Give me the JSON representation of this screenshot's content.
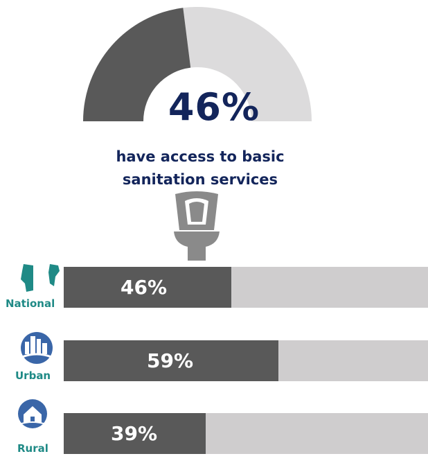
{
  "colors": {
    "filled": "#595959",
    "empty_gauge": "#dcdbdc",
    "empty_bar": "#cfcdce",
    "headline": "#13255b",
    "label": "#1f8a86",
    "toilet": "#8a8a8a",
    "icon_blue": "#3a66a8"
  },
  "gauge": {
    "percent_label": "46%",
    "caption_line1": "have access to basic",
    "caption_line2": "sanitation services",
    "value": 46
  },
  "icons": {
    "toilet": "toilet-icon",
    "national": "country-map-icon",
    "urban": "city-icon",
    "rural": "farmhouse-icon"
  },
  "chart_data": [
    {
      "type": "pie",
      "subtype": "half-donut gauge",
      "values": [
        46,
        54
      ],
      "title": "46%"
    },
    {
      "type": "bar",
      "orientation": "horizontal",
      "categories": [
        "National",
        "Urban",
        "Rural"
      ],
      "values": [
        46,
        59,
        39
      ],
      "data_labels": [
        "46%",
        "59%",
        "39%"
      ],
      "xlim": [
        0,
        100
      ]
    }
  ]
}
